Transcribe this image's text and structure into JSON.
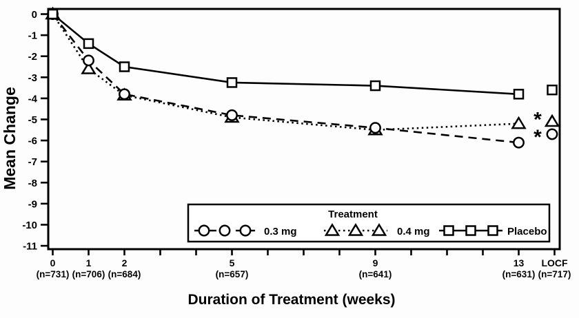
{
  "chart_data": {
    "type": "line",
    "title": "",
    "xlabel": "Duration of Treatment (weeks)",
    "ylabel": "Mean Change",
    "ylim": [
      -11,
      0
    ],
    "xlim_weeks": [
      0,
      14
    ],
    "grid": false,
    "background": "#ffffff",
    "foreground": "#000000",
    "y_ticks": [
      0,
      -1,
      -2,
      -3,
      -4,
      -5,
      -6,
      -7,
      -8,
      -9,
      -10,
      -11
    ],
    "x_tick_weeks": [
      0,
      1,
      2,
      3,
      4,
      5,
      6,
      7,
      8,
      9,
      10,
      11,
      12,
      13,
      14
    ],
    "x_labeled_points": [
      {
        "week": 0,
        "label": "0",
        "n": "(n=731)"
      },
      {
        "week": 1,
        "label": "1",
        "n": "(n=706)"
      },
      {
        "week": 2,
        "label": "2",
        "n": "(n=684)"
      },
      {
        "week": 5,
        "label": "5",
        "n": "(n=657)"
      },
      {
        "week": 9,
        "label": "9",
        "n": "(n=641)"
      },
      {
        "week": 13,
        "label": "13",
        "n": "(n=631)"
      },
      {
        "week": 14,
        "label": "LOCF",
        "n": "(n=717)"
      }
    ],
    "legend": {
      "title": "Treatment",
      "position": "bottom-inside"
    },
    "series": [
      {
        "name": "0.3 mg",
        "marker": "circle",
        "line": "dashed",
        "weeks": [
          0,
          1,
          2,
          5,
          9,
          13
        ],
        "values": [
          0,
          -2.2,
          -3.8,
          -4.8,
          -5.4,
          -6.1
        ],
        "locf_value": -5.7,
        "locf_flag": "*"
      },
      {
        "name": "0.4 mg",
        "marker": "triangle",
        "line": "dotted",
        "weeks": [
          0,
          1,
          2,
          5,
          9,
          13
        ],
        "values": [
          0,
          -2.6,
          -3.85,
          -4.9,
          -5.5,
          -5.2
        ],
        "locf_value": -5.1,
        "locf_flag": "*"
      },
      {
        "name": "Placebo",
        "marker": "square",
        "line": "solid",
        "weeks": [
          0,
          1,
          2,
          5,
          9,
          13
        ],
        "values": [
          0,
          -1.4,
          -2.5,
          -3.25,
          -3.4,
          -3.8
        ],
        "locf_value": -3.6,
        "locf_flag": ""
      }
    ]
  }
}
